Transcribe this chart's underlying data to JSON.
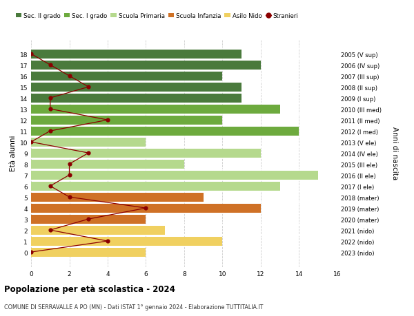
{
  "ages": [
    18,
    17,
    16,
    15,
    14,
    13,
    12,
    11,
    10,
    9,
    8,
    7,
    6,
    5,
    4,
    3,
    2,
    1,
    0
  ],
  "right_labels": [
    "2005 (V sup)",
    "2006 (IV sup)",
    "2007 (III sup)",
    "2008 (II sup)",
    "2009 (I sup)",
    "2010 (III med)",
    "2011 (II med)",
    "2012 (I med)",
    "2013 (V ele)",
    "2014 (IV ele)",
    "2015 (III ele)",
    "2016 (II ele)",
    "2017 (I ele)",
    "2018 (mater)",
    "2019 (mater)",
    "2020 (mater)",
    "2021 (nido)",
    "2022 (nido)",
    "2023 (nido)"
  ],
  "bar_values": [
    11,
    12,
    10,
    11,
    11,
    13,
    10,
    14,
    6,
    12,
    8,
    15,
    13,
    9,
    12,
    6,
    7,
    10,
    6
  ],
  "bar_colors": [
    "#4a7a3c",
    "#4a7a3c",
    "#4a7a3c",
    "#4a7a3c",
    "#4a7a3c",
    "#6daa3e",
    "#6daa3e",
    "#6daa3e",
    "#b5d98d",
    "#b5d98d",
    "#b5d98d",
    "#b5d98d",
    "#b5d98d",
    "#cf7126",
    "#cf7126",
    "#cf7126",
    "#f0d060",
    "#f0d060",
    "#f0d060"
  ],
  "stranieri_values": [
    0,
    1,
    2,
    3,
    1,
    1,
    4,
    1,
    0,
    3,
    2,
    2,
    1,
    2,
    6,
    3,
    1,
    4,
    0
  ],
  "legend_labels": [
    "Sec. II grado",
    "Sec. I grado",
    "Scuola Primaria",
    "Scuola Infanzia",
    "Asilo Nido",
    "Stranieri"
  ],
  "legend_colors": [
    "#4a7a3c",
    "#6daa3e",
    "#b5d98d",
    "#cf7126",
    "#f0d060",
    "#8b0000"
  ],
  "ylabel": "Età alunni",
  "right_ylabel": "Anni di nascita",
  "title": "Popolazione per età scolastica - 2024",
  "subtitle": "COMUNE DI SERRAVALLE A PO (MN) - Dati ISTAT 1° gennaio 2024 - Elaborazione TUTTITALIA.IT",
  "xlim": [
    0,
    16
  ],
  "xticks": [
    0,
    2,
    4,
    6,
    8,
    10,
    12,
    14,
    16
  ],
  "bar_height": 0.82,
  "stranieri_color": "#8b0000",
  "stranieri_dot_color": "#8b0000",
  "grid_color": "#cccccc",
  "separator_color": "#ffffff"
}
